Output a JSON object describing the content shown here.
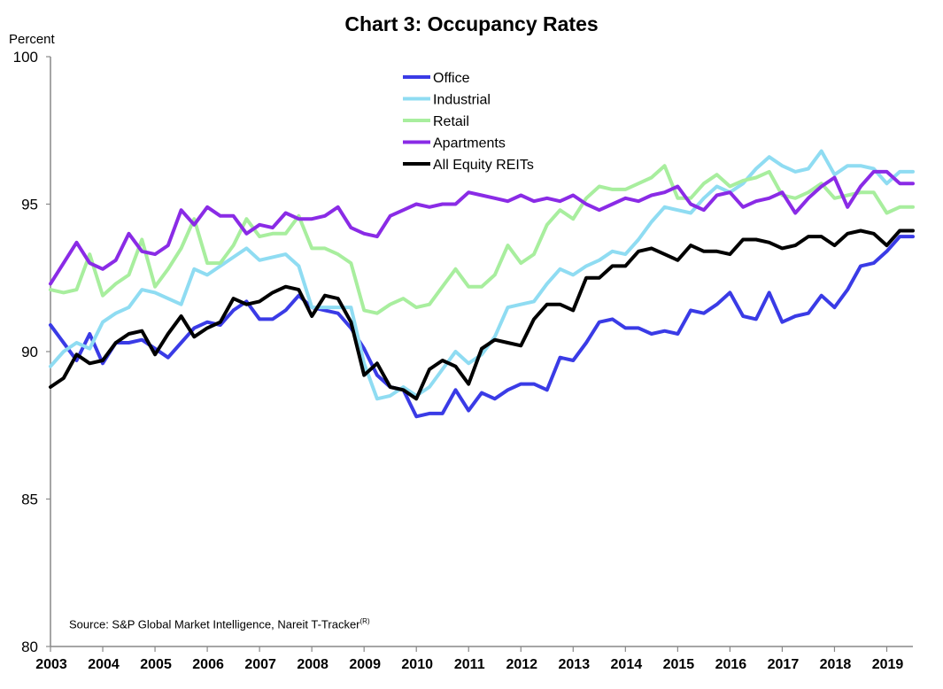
{
  "chart_data": {
    "type": "line",
    "title": "Chart 3: Occupancy Rates",
    "ylabel": "Percent",
    "xlabel": "",
    "ylim": [
      80,
      100
    ],
    "yticks": [
      80,
      85,
      90,
      95,
      100
    ],
    "xlim": [
      2003,
      2019.5
    ],
    "xticks": [
      "2003",
      "2004",
      "2005",
      "2006",
      "2007",
      "2008",
      "2009",
      "2010",
      "2011",
      "2012",
      "2013",
      "2014",
      "2015",
      "2016",
      "2017",
      "2018",
      "2019"
    ],
    "x_quarters": [
      "2003Q1",
      "2003Q2",
      "2003Q3",
      "2003Q4",
      "2004Q1",
      "2004Q2",
      "2004Q3",
      "2004Q4",
      "2005Q1",
      "2005Q2",
      "2005Q3",
      "2005Q4",
      "2006Q1",
      "2006Q2",
      "2006Q3",
      "2006Q4",
      "2007Q1",
      "2007Q2",
      "2007Q3",
      "2007Q4",
      "2008Q1",
      "2008Q2",
      "2008Q3",
      "2008Q4",
      "2009Q1",
      "2009Q2",
      "2009Q3",
      "2009Q4",
      "2010Q1",
      "2010Q2",
      "2010Q3",
      "2010Q4",
      "2011Q1",
      "2011Q2",
      "2011Q3",
      "2011Q4",
      "2012Q1",
      "2012Q2",
      "2012Q3",
      "2012Q4",
      "2013Q1",
      "2013Q2",
      "2013Q3",
      "2013Q4",
      "2014Q1",
      "2014Q2",
      "2014Q3",
      "2014Q4",
      "2015Q1",
      "2015Q2",
      "2015Q3",
      "2015Q4",
      "2016Q1",
      "2016Q2",
      "2016Q3",
      "2016Q4",
      "2017Q1",
      "2017Q2",
      "2017Q3",
      "2017Q4",
      "2018Q1",
      "2018Q2",
      "2018Q3",
      "2018Q4",
      "2019Q1",
      "2019Q2",
      "2019Q3"
    ],
    "series": [
      {
        "name": "Office",
        "color": "#3a3be6",
        "values": [
          90.9,
          90.3,
          89.7,
          90.6,
          89.6,
          90.3,
          90.3,
          90.4,
          90.1,
          89.8,
          90.3,
          90.8,
          91.0,
          90.9,
          91.4,
          91.7,
          91.1,
          91.1,
          91.4,
          91.9,
          91.5,
          91.4,
          91.3,
          90.8,
          90.1,
          89.2,
          88.8,
          88.7,
          87.8,
          87.9,
          87.9,
          88.7,
          88.0,
          88.6,
          88.4,
          88.7,
          88.9,
          88.9,
          88.7,
          89.8,
          89.7,
          90.3,
          91.0,
          91.1,
          90.8,
          90.8,
          90.6,
          90.7,
          90.6,
          91.4,
          91.3,
          91.6,
          92.0,
          91.2,
          91.1,
          92.0,
          91.0,
          91.2,
          91.3,
          91.9,
          91.5,
          92.1,
          92.9,
          93.0,
          93.4,
          93.9,
          93.9
        ]
      },
      {
        "name": "Industrial",
        "color": "#8fdcf2",
        "values": [
          89.5,
          90.0,
          90.3,
          90.1,
          91.0,
          91.3,
          91.5,
          92.1,
          92.0,
          91.8,
          91.6,
          92.8,
          92.6,
          92.9,
          93.2,
          93.5,
          93.1,
          93.2,
          93.3,
          92.9,
          91.5,
          91.5,
          91.5,
          91.5,
          89.6,
          88.4,
          88.5,
          88.8,
          88.5,
          88.8,
          89.4,
          90.0,
          89.6,
          89.9,
          90.5,
          91.5,
          91.6,
          91.7,
          92.3,
          92.8,
          92.6,
          92.9,
          93.1,
          93.4,
          93.3,
          93.8,
          94.4,
          94.9,
          94.8,
          94.7,
          95.2,
          95.6,
          95.4,
          95.7,
          96.2,
          96.6,
          96.3,
          96.1,
          96.2,
          96.8,
          96.0,
          96.3,
          96.3,
          96.2,
          95.7,
          96.1,
          96.1
        ]
      },
      {
        "name": "Retail",
        "color": "#a8ee9e",
        "values": [
          92.1,
          92.0,
          92.1,
          93.3,
          91.9,
          92.3,
          92.6,
          93.8,
          92.2,
          92.8,
          93.5,
          94.5,
          93.0,
          93.0,
          93.6,
          94.5,
          93.9,
          94.0,
          94.0,
          94.6,
          93.5,
          93.5,
          93.3,
          93.0,
          91.4,
          91.3,
          91.6,
          91.8,
          91.5,
          91.6,
          92.2,
          92.8,
          92.2,
          92.2,
          92.6,
          93.6,
          93.0,
          93.3,
          94.3,
          94.8,
          94.5,
          95.2,
          95.6,
          95.5,
          95.5,
          95.7,
          95.9,
          96.3,
          95.2,
          95.2,
          95.7,
          96.0,
          95.6,
          95.8,
          95.9,
          96.1,
          95.3,
          95.2,
          95.4,
          95.7,
          95.2,
          95.3,
          95.4,
          95.4,
          94.7,
          94.9,
          94.9
        ]
      },
      {
        "name": "Apartments",
        "color": "#8a2be6",
        "values": [
          92.3,
          93.0,
          93.7,
          93.0,
          92.8,
          93.1,
          94.0,
          93.4,
          93.3,
          93.6,
          94.8,
          94.3,
          94.9,
          94.6,
          94.6,
          94.0,
          94.3,
          94.2,
          94.7,
          94.5,
          94.5,
          94.6,
          94.9,
          94.2,
          94.0,
          93.9,
          94.6,
          94.8,
          95.0,
          94.9,
          95.0,
          95.0,
          95.4,
          95.3,
          95.2,
          95.1,
          95.3,
          95.1,
          95.2,
          95.1,
          95.3,
          95.0,
          94.8,
          95.0,
          95.2,
          95.1,
          95.3,
          95.4,
          95.6,
          95.0,
          94.8,
          95.3,
          95.4,
          94.9,
          95.1,
          95.2,
          95.4,
          94.7,
          95.2,
          95.6,
          95.9,
          94.9,
          95.6,
          96.1,
          96.1,
          95.7,
          95.7
        ]
      },
      {
        "name": "All Equity REITs",
        "color": "#000000",
        "values": [
          88.8,
          89.1,
          89.9,
          89.6,
          89.7,
          90.3,
          90.6,
          90.7,
          89.9,
          90.6,
          91.2,
          90.5,
          90.8,
          91.0,
          91.8,
          91.6,
          91.7,
          92.0,
          92.2,
          92.1,
          91.2,
          91.9,
          91.8,
          91.0,
          89.2,
          89.6,
          88.8,
          88.7,
          88.4,
          89.4,
          89.7,
          89.5,
          88.9,
          90.1,
          90.4,
          90.3,
          90.2,
          91.1,
          91.6,
          91.6,
          91.4,
          92.5,
          92.5,
          92.9,
          92.9,
          93.4,
          93.5,
          93.3,
          93.1,
          93.6,
          93.4,
          93.4,
          93.3,
          93.8,
          93.8,
          93.7,
          93.5,
          93.6,
          93.9,
          93.9,
          93.6,
          94.0,
          94.1,
          94.0,
          93.6,
          94.1,
          94.1
        ]
      }
    ],
    "legend": {
      "placement": "top-center"
    },
    "grid": false,
    "annotation": {
      "text": "Source: S&P Global Market Intelligence, Nareit T-Tracker",
      "superscript": "(R)"
    }
  }
}
